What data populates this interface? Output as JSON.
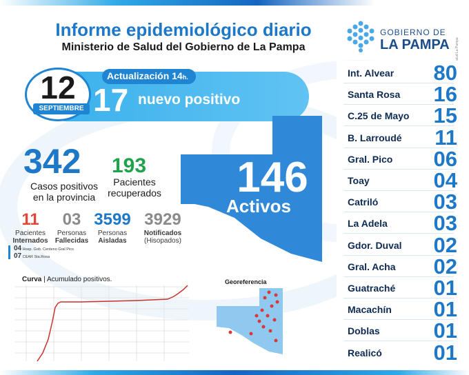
{
  "header": {
    "title": "Informe epidemiológico diario",
    "subtitle": "Ministerio de Salud del Gobierno de La Pampa"
  },
  "logo": {
    "line1": "GOBIERNO DE",
    "line2": "LA PAMPA",
    "icon": "dotted-hexagon-logo"
  },
  "side_note": "DG | Arte Diseño Gráfico | Ministerio de Salud La Pampa",
  "update": {
    "label": "Actualización 14",
    "suffix": "h."
  },
  "date": {
    "day": "12",
    "month": "SEPTIEMBRE"
  },
  "new_cases": {
    "number": "17",
    "label": "nuevo positivo"
  },
  "totals": {
    "positive_number": "342",
    "positive_label_1": "Casos positivos",
    "positive_label_2": "en la provincia",
    "recovered_number": "193",
    "recovered_label_1": "Pacientes",
    "recovered_label_2": "recuperados"
  },
  "active": {
    "number": "146",
    "label": "Activos"
  },
  "stats": [
    {
      "number": "11",
      "label_1": "Pacientes",
      "label_2": "Internados",
      "color": "#e3453a"
    },
    {
      "number": "03",
      "label_1": "Personas",
      "label_2": "Fallecidas",
      "color": "#8a8a8a"
    },
    {
      "number": "3599",
      "label_1": "Personas",
      "label_2": "Aisladas",
      "color": "#1e78c8"
    },
    {
      "number": "3929",
      "label_1": "Notificados",
      "label_2": "(Hisopados)",
      "color": "#8a8a8a"
    }
  ],
  "hospital_notes": [
    {
      "number": "04",
      "text": "Hosp. Gob. Centeno Gral Pico"
    },
    {
      "number": "07",
      "text": "CEAR Sta.Rosa"
    }
  ],
  "curve": {
    "title_bold": "Curva",
    "title_rest": " | Acumulado positivos."
  },
  "georef": {
    "title": "Georeferencia"
  },
  "localities": [
    {
      "name": "Int. Alvear",
      "count": "80"
    },
    {
      "name": "Santa Rosa",
      "count": "16"
    },
    {
      "name": "C.25 de Mayo",
      "count": "15"
    },
    {
      "name": "B. Larroudé",
      "count": "11"
    },
    {
      "name": "Gral. Pico",
      "count": "06"
    },
    {
      "name": "Toay",
      "count": "04"
    },
    {
      "name": "Catriló",
      "count": "03"
    },
    {
      "name": "La Adela",
      "count": "03"
    },
    {
      "name": "Gdor. Duval",
      "count": "02"
    },
    {
      "name": "Gral. Acha",
      "count": "02"
    },
    {
      "name": "Guatraché",
      "count": "01"
    },
    {
      "name": "Macachín",
      "count": "01"
    },
    {
      "name": "Doblas",
      "count": "01"
    },
    {
      "name": "Realicó",
      "count": "01"
    }
  ],
  "colors": {
    "brand_blue": "#1e78c8",
    "light_blue": "#39b0ec",
    "green": "#1fa34a",
    "red": "#e3453a",
    "navy": "#0d2a52"
  }
}
